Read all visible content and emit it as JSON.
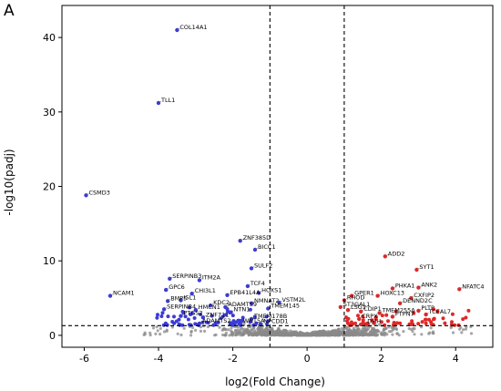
{
  "panel_label": "A",
  "chart_data": {
    "type": "scatter",
    "title": "",
    "xlabel": "log2(Fold Change)",
    "ylabel": "-log10(padj)",
    "xlim": [
      -6.6,
      5.0
    ],
    "ylim": [
      -1.6,
      44.3
    ],
    "xticks": [
      -6,
      -4,
      -2,
      0,
      2,
      4
    ],
    "yticks": [
      0,
      10,
      20,
      30,
      40
    ],
    "grid": false,
    "legend": "none",
    "thresholds": {
      "log2fc": [
        -1,
        1
      ],
      "neg_log10_padj": 1.3
    },
    "colors": {
      "down": "#3b3bd6",
      "up": "#e02828",
      "ns": "#8a8a8a",
      "thresholds": "#000000"
    },
    "labeled_points": [
      {
        "gene": "COL14A1",
        "x": -3.5,
        "y": 41.0,
        "group": "down"
      },
      {
        "gene": "TLL1",
        "x": -4.0,
        "y": 31.2,
        "group": "down"
      },
      {
        "gene": "CSMD3",
        "x": -5.95,
        "y": 18.8,
        "group": "down"
      },
      {
        "gene": "ZNF385D",
        "x": -1.8,
        "y": 12.7,
        "group": "down"
      },
      {
        "gene": "BICC1",
        "x": -1.4,
        "y": 11.5,
        "group": "down"
      },
      {
        "gene": "SULF2",
        "x": -1.5,
        "y": 9.0,
        "group": "down"
      },
      {
        "gene": "SERPINB3",
        "x": -3.7,
        "y": 7.6,
        "group": "down"
      },
      {
        "gene": "ITM2A",
        "x": -2.9,
        "y": 7.4,
        "group": "down"
      },
      {
        "gene": "TCF4",
        "x": -1.6,
        "y": 6.6,
        "group": "down"
      },
      {
        "gene": "GPC6",
        "x": -3.8,
        "y": 6.1,
        "group": "down"
      },
      {
        "gene": "CHI3L1",
        "x": -3.1,
        "y": 5.6,
        "group": "down"
      },
      {
        "gene": "HOXS1",
        "x": -1.3,
        "y": 5.7,
        "group": "down"
      },
      {
        "gene": "EPB41L4A",
        "x": -2.15,
        "y": 5.4,
        "group": "down"
      },
      {
        "gene": "BMP5",
        "x": -3.75,
        "y": 4.6,
        "group": "down"
      },
      {
        "gene": "ISL1",
        "x": -3.4,
        "y": 4.7,
        "group": "down"
      },
      {
        "gene": "NMNAT2",
        "x": -1.5,
        "y": 4.3,
        "group": "down"
      },
      {
        "gene": "VSTM2L",
        "x": -0.75,
        "y": 4.4,
        "group": "down"
      },
      {
        "gene": "KDC2",
        "x": -2.6,
        "y": 4.0,
        "group": "down"
      },
      {
        "gene": "ADAMTS9",
        "x": -2.2,
        "y": 3.8,
        "group": "down"
      },
      {
        "gene": "TMEM145",
        "x": -1.05,
        "y": 3.6,
        "group": "down"
      },
      {
        "gene": "NCAM1",
        "x": -5.3,
        "y": 5.3,
        "group": "down"
      },
      {
        "gene": "SERPINB4",
        "x": -3.85,
        "y": 3.5,
        "group": "down"
      },
      {
        "gene": "HMCN1",
        "x": -3.0,
        "y": 3.4,
        "group": "down"
      },
      {
        "gene": "NTN1",
        "x": -2.05,
        "y": 3.1,
        "group": "down"
      },
      {
        "gene": "PTGS2",
        "x": -3.4,
        "y": 2.6,
        "group": "down"
      },
      {
        "gene": "ZNF711",
        "x": -2.8,
        "y": 2.4,
        "group": "down"
      },
      {
        "gene": "TMEM178B",
        "x": -1.5,
        "y": 2.2,
        "group": "down"
      },
      {
        "gene": "ADAMTS2",
        "x": -2.9,
        "y": 1.6,
        "group": "down"
      },
      {
        "gene": "WNT5A",
        "x": -1.8,
        "y": 1.6,
        "group": "down"
      },
      {
        "gene": "NPCDD1",
        "x": -1.25,
        "y": 1.5,
        "group": "down"
      },
      {
        "gene": "ST3GAL1",
        "x": 0.9,
        "y": 3.8,
        "group": "up"
      },
      {
        "gene": "RHOD",
        "x": 1.0,
        "y": 4.7,
        "group": "up"
      },
      {
        "gene": "GPER1",
        "x": 1.2,
        "y": 5.3,
        "group": "up"
      },
      {
        "gene": "LSG1",
        "x": 1.1,
        "y": 3.4,
        "group": "up"
      },
      {
        "gene": "HOXC13",
        "x": 1.9,
        "y": 5.3,
        "group": "up"
      },
      {
        "gene": "ADD2",
        "x": 2.1,
        "y": 10.6,
        "group": "up"
      },
      {
        "gene": "SYT1",
        "x": 2.95,
        "y": 8.8,
        "group": "up"
      },
      {
        "gene": "PHKA1",
        "x": 2.3,
        "y": 6.3,
        "group": "up"
      },
      {
        "gene": "ANK2",
        "x": 3.0,
        "y": 6.4,
        "group": "up"
      },
      {
        "gene": "NFATC4",
        "x": 4.1,
        "y": 6.2,
        "group": "up"
      },
      {
        "gene": "CXFIP2",
        "x": 2.8,
        "y": 5.0,
        "group": "up"
      },
      {
        "gene": "DENND2C",
        "x": 2.5,
        "y": 4.3,
        "group": "up"
      },
      {
        "gene": "CDIP1",
        "x": 1.45,
        "y": 3.2,
        "group": "up"
      },
      {
        "gene": "TMEM255A",
        "x": 1.95,
        "y": 3.0,
        "group": "up"
      },
      {
        "gene": "PLTP",
        "x": 3.0,
        "y": 3.3,
        "group": "up"
      },
      {
        "gene": "TCEAL7",
        "x": 3.2,
        "y": 2.8,
        "group": "up"
      },
      {
        "gene": "PTPN7",
        "x": 2.3,
        "y": 2.5,
        "group": "up"
      },
      {
        "gene": "CRPX",
        "x": 1.4,
        "y": 2.2,
        "group": "up"
      },
      {
        "gene": "DHH",
        "x": 1.55,
        "y": 1.5,
        "group": "up"
      }
    ]
  }
}
